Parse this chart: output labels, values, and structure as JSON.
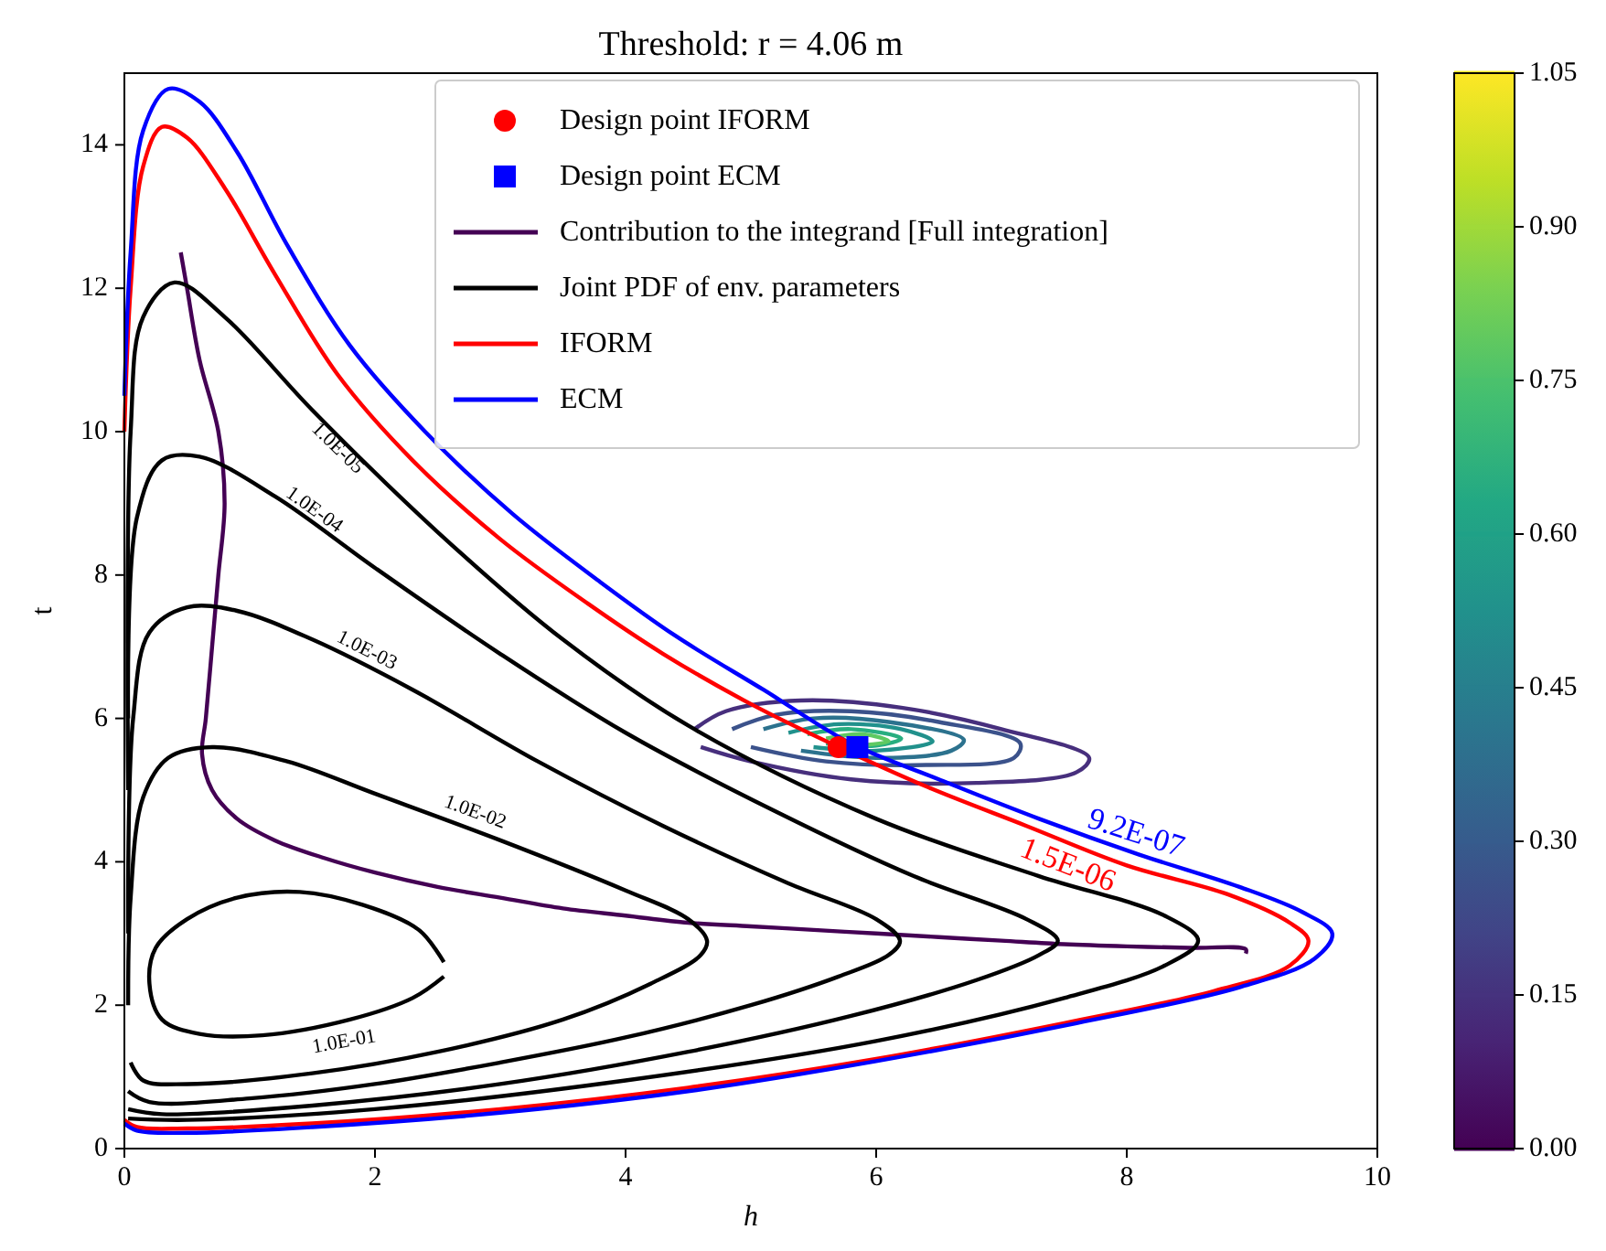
{
  "chart_data": {
    "type": "line",
    "title": "Threshold: r = 4.06 m",
    "xlabel": "h",
    "ylabel": "t",
    "xlim": [
      0,
      10
    ],
    "ylim": [
      0,
      15
    ],
    "xticks": [
      0,
      2,
      4,
      6,
      8,
      10
    ],
    "yticks": [
      0,
      2,
      4,
      6,
      8,
      10,
      12,
      14
    ],
    "grid": false,
    "legend": "top right",
    "clim": [
      0,
      1.05
    ],
    "cticks": [
      {
        "value": 0,
        "label": "0.00"
      },
      {
        "value": 0.15,
        "label": "0.15"
      },
      {
        "value": 0.3,
        "label": "0.30"
      },
      {
        "value": 0.45,
        "label": "0.45"
      },
      {
        "value": 0.6,
        "label": "0.60"
      },
      {
        "value": 0.75,
        "label": "0.75"
      },
      {
        "value": 0.9,
        "label": "0.90"
      },
      {
        "value": 1.05,
        "label": "1.05"
      }
    ],
    "series": [
      {
        "name": "Design point IFORM",
        "type": "scatter",
        "marker": "circle",
        "color": "#ff0000",
        "x": [
          5.7
        ],
        "values": [
          5.6
        ]
      },
      {
        "name": "Design point ECM",
        "type": "scatter",
        "marker": "square",
        "color": "#0000ff",
        "x": [
          5.85
        ],
        "values": [
          5.6
        ]
      },
      {
        "name": "Contribution to the integrand [Full integration]",
        "color": "#440154",
        "x": [
          0.45,
          0.5,
          0.6,
          0.75,
          0.8,
          0.75,
          0.7,
          0.65,
          0.62,
          0.7,
          0.9,
          1.2,
          1.6,
          2.0,
          2.5,
          3.0,
          3.5,
          4.0,
          4.5,
          5.0,
          5.5,
          6.0,
          6.5,
          7.0,
          7.5,
          8.0,
          8.5,
          8.95,
          8.95
        ],
        "values": [
          12.5,
          12.0,
          11.0,
          10.0,
          9.0,
          8.0,
          7.0,
          6.0,
          5.5,
          5.0,
          4.6,
          4.3,
          4.05,
          3.85,
          3.65,
          3.5,
          3.35,
          3.25,
          3.15,
          3.1,
          3.05,
          3.0,
          2.95,
          2.9,
          2.85,
          2.82,
          2.8,
          2.78,
          2.72
        ]
      },
      {
        "color": "#472f7d",
        "x": [
          4.55,
          4.8,
          5.4,
          6.2,
          7.0,
          7.7,
          7.6,
          6.8,
          5.8,
          5.0,
          4.6
        ],
        "values": [
          5.85,
          6.1,
          6.25,
          6.15,
          5.85,
          5.45,
          5.25,
          5.1,
          5.15,
          5.4,
          5.6
        ]
      },
      {
        "color": "#3b528b",
        "x": [
          4.85,
          5.2,
          5.8,
          6.5,
          7.15,
          7.1,
          6.4,
          5.6,
          5.0
        ],
        "values": [
          5.85,
          6.05,
          6.1,
          5.95,
          5.65,
          5.45,
          5.35,
          5.4,
          5.6
        ]
      },
      {
        "color": "#2c728e",
        "x": [
          5.1,
          5.5,
          6.1,
          6.7,
          6.6,
          6.0,
          5.4
        ],
        "values": [
          5.85,
          6.0,
          5.95,
          5.7,
          5.55,
          5.45,
          5.55
        ]
      },
      {
        "color": "#21918c",
        "x": [
          5.3,
          5.7,
          6.2,
          6.45,
          6.0,
          5.5
        ],
        "values": [
          5.8,
          5.92,
          5.85,
          5.68,
          5.55,
          5.6
        ]
      },
      {
        "color": "#28ae80",
        "x": [
          5.45,
          5.8,
          6.2,
          6.0,
          5.6
        ],
        "values": [
          5.78,
          5.85,
          5.72,
          5.62,
          5.65
        ]
      },
      {
        "color": "#5ec962",
        "x": [
          5.6,
          5.9,
          6.1,
          5.85
        ],
        "values": [
          5.72,
          5.78,
          5.68,
          5.62
        ]
      },
      {
        "name": "Joint PDF of env. parameters",
        "color": "#000000",
        "x": [
          2.55,
          2.35,
          1.9,
          1.4,
          0.9,
          0.5,
          0.25,
          0.2,
          0.3,
          0.6,
          1.1,
          1.8,
          2.3,
          2.55
        ],
        "values": [
          2.6,
          3.05,
          3.4,
          3.58,
          3.5,
          3.2,
          2.8,
          2.3,
          1.8,
          1.6,
          1.58,
          1.8,
          2.1,
          2.4
        ]
      },
      {
        "color": "#000000",
        "x": [
          0.05,
          0.15,
          0.5,
          1.5,
          2.5,
          3.5,
          4.2,
          4.6,
          4.65,
          4.5,
          4.0,
          3.0,
          2.0,
          1.3,
          0.7,
          0.35,
          0.15,
          0.05,
          0.03
        ],
        "values": [
          1.2,
          0.95,
          0.9,
          1.05,
          1.35,
          1.8,
          2.3,
          2.7,
          2.9,
          3.2,
          3.6,
          4.3,
          4.95,
          5.4,
          5.6,
          5.45,
          4.9,
          3.5,
          2.0
        ]
      },
      {
        "color": "#000000",
        "x": [
          0.03,
          0.2,
          1,
          2,
          3,
          4,
          5,
          5.7,
          6.1,
          6.19,
          6.0,
          5.3,
          4.3,
          3.3,
          2.3,
          1.5,
          0.9,
          0.5,
          0.2,
          0.07,
          0.03
        ],
        "values": [
          0.8,
          0.65,
          0.7,
          0.9,
          1.2,
          1.55,
          2.0,
          2.4,
          2.7,
          2.9,
          3.2,
          3.7,
          4.5,
          5.4,
          6.4,
          7.1,
          7.5,
          7.55,
          7.2,
          6,
          3
        ]
      },
      {
        "color": "#000000",
        "x": [
          0.03,
          0.3,
          1.5,
          3,
          4.5,
          5.8,
          6.8,
          7.3,
          7.45,
          7.2,
          6.3,
          5.2,
          4,
          3,
          2,
          1.2,
          0.6,
          0.3,
          0.1,
          0.03
        ],
        "values": [
          0.55,
          0.48,
          0.6,
          0.9,
          1.35,
          1.85,
          2.35,
          2.7,
          2.9,
          3.2,
          3.8,
          4.7,
          5.8,
          6.9,
          8.1,
          9.1,
          9.65,
          9.6,
          8.8,
          6
        ]
      },
      {
        "color": "#000000",
        "x": [
          0.03,
          0.5,
          2,
          4,
          6,
          7.5,
          8.3,
          8.57,
          8.3,
          7.3,
          6,
          4.5,
          3.5,
          2.5,
          1.5,
          0.8,
          0.4,
          0.15,
          0.05,
          0.03
        ],
        "values": [
          0.42,
          0.4,
          0.55,
          0.95,
          1.5,
          2.1,
          2.55,
          2.9,
          3.25,
          3.8,
          4.6,
          5.9,
          7.1,
          8.6,
          10.3,
          11.6,
          12.08,
          11.6,
          10,
          5
        ]
      },
      {
        "name": "IFORM",
        "color": "#ff0000",
        "x": [
          0,
          0.05,
          0.15,
          0.3,
          0.5,
          0.8,
          1.2,
          1.7,
          2.3,
          3.0,
          3.7,
          4.3,
          5.0,
          5.7,
          6.4,
          7.2,
          8.0,
          8.8,
          9.3,
          9.45,
          9.3,
          8.7,
          7.5,
          6,
          4.5,
          3,
          1.5,
          0.5,
          0.1,
          0
        ],
        "values": [
          10,
          12,
          13.7,
          14.25,
          14.1,
          13.4,
          12.2,
          10.8,
          9.6,
          8.5,
          7.6,
          6.9,
          6.2,
          5.6,
          5.05,
          4.5,
          3.95,
          3.55,
          3.15,
          2.9,
          2.55,
          2.2,
          1.75,
          1.25,
          0.85,
          0.55,
          0.35,
          0.28,
          0.3,
          0.4
        ]
      },
      {
        "name": "ECM",
        "color": "#0000ff",
        "x": [
          0,
          0.05,
          0.15,
          0.35,
          0.6,
          0.9,
          1.3,
          1.8,
          2.4,
          3.1,
          3.8,
          4.4,
          5.1,
          5.8,
          6.5,
          7.3,
          8.1,
          8.9,
          9.4,
          9.64,
          9.5,
          8.9,
          7.6,
          6,
          4.5,
          3,
          1.5,
          0.5,
          0.1,
          0
        ],
        "values": [
          10.5,
          12.5,
          14.2,
          14.78,
          14.6,
          13.9,
          12.6,
          11.2,
          10,
          8.85,
          7.9,
          7.15,
          6.4,
          5.65,
          5.15,
          4.6,
          4.1,
          3.65,
          3.3,
          3.0,
          2.65,
          2.25,
          1.75,
          1.22,
          0.8,
          0.5,
          0.3,
          0.22,
          0.25,
          0.35
        ]
      }
    ],
    "annotations": [
      {
        "text": "1.0E-05",
        "x": 1.6,
        "y": 9.95
      },
      {
        "text": "1.0E-04",
        "x": 1.6,
        "y": 8.7
      },
      {
        "text": "1.0E-03",
        "x": 2.0,
        "y": 6.72
      },
      {
        "text": "1.0E-02",
        "x": 2.85,
        "y": 4.45
      },
      {
        "text": "1.0E-01",
        "x": 1.78,
        "y": 1.74
      },
      {
        "text": "1.5E-06",
        "x": 7.47,
        "y": 4.25
      },
      {
        "text": "9.2E-07",
        "x": 8.13,
        "y": 4.12
      }
    ]
  }
}
